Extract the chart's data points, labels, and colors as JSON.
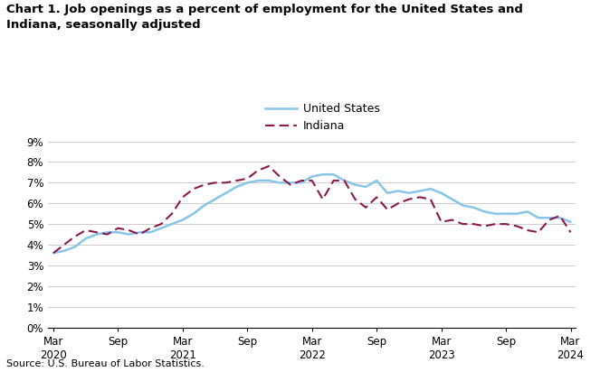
{
  "title": "Chart 1. Job openings as a percent of employment for the United States and\nIndiana, seasonally adjusted",
  "source": "Source: U.S. Bureau of Labor Statistics.",
  "us_data": [
    3.6,
    3.7,
    3.9,
    4.3,
    4.5,
    4.6,
    4.6,
    4.5,
    4.6,
    4.6,
    4.8,
    5.0,
    5.2,
    5.5,
    5.9,
    6.2,
    6.5,
    6.8,
    7.0,
    7.1,
    7.1,
    7.0,
    7.0,
    7.0,
    7.3,
    7.4,
    7.4,
    7.1,
    6.9,
    6.8,
    7.1,
    6.5,
    6.6,
    6.5,
    6.6,
    6.7,
    6.5,
    6.2,
    5.9,
    5.8,
    5.6,
    5.5,
    5.5,
    5.5,
    5.6,
    5.3,
    5.3,
    5.3,
    5.1
  ],
  "in_data": [
    3.6,
    4.0,
    4.4,
    4.7,
    4.6,
    4.5,
    4.8,
    4.7,
    4.5,
    4.8,
    5.0,
    5.5,
    6.3,
    6.7,
    6.9,
    7.0,
    7.0,
    7.1,
    7.2,
    7.6,
    7.8,
    7.3,
    6.9,
    7.1,
    7.1,
    6.2,
    7.1,
    7.1,
    6.2,
    5.8,
    6.3,
    5.7,
    6.0,
    6.2,
    6.3,
    6.2,
    5.1,
    5.2,
    5.0,
    5.0,
    4.9,
    5.0,
    5.0,
    4.9,
    4.7,
    4.6,
    5.2,
    5.4,
    4.6
  ],
  "us_color": "#88C5E8",
  "in_color": "#8B1A4A",
  "ylim": [
    0,
    9
  ],
  "yticks": [
    0,
    1,
    2,
    3,
    4,
    5,
    6,
    7,
    8,
    9
  ],
  "ytick_labels": [
    "0%",
    "1%",
    "2%",
    "3%",
    "4%",
    "5%",
    "6%",
    "7%",
    "8%",
    "9%"
  ],
  "xtick_positions": [
    0,
    6,
    12,
    18,
    24,
    30,
    36,
    42,
    48
  ],
  "xtick_labels": [
    "Mar\n2020",
    "Sep",
    "Mar\n2021",
    "Sep",
    "Mar\n2022",
    "Sep",
    "Mar\n2023",
    "Sep",
    "Mar\n2024"
  ],
  "legend_us": "United States",
  "legend_in": "Indiana",
  "grid_color": "#CCCCCC",
  "background_color": "#FFFFFF"
}
